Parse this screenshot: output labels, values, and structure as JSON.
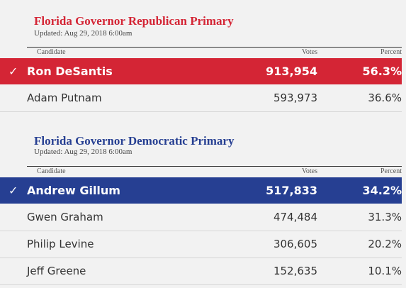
{
  "colors": {
    "republican": "#d42535",
    "democratic": "#263f92"
  },
  "races": [
    {
      "title": "Florida Governor Republican Primary",
      "updated": "Updated: Aug 29, 2018 6:00am",
      "headers": {
        "candidate": "Candidate",
        "votes": "Votes",
        "percent": "Percent"
      },
      "candidates": [
        {
          "name": "Ron DeSantis",
          "votes": "913,954",
          "percent": "56.3%",
          "winner": true,
          "check": "✓"
        },
        {
          "name": "Adam Putnam",
          "votes": "593,973",
          "percent": "36.6%",
          "winner": false
        }
      ]
    },
    {
      "title": "Florida Governor Democratic Primary",
      "updated": "Updated: Aug 29, 2018 6:00am",
      "headers": {
        "candidate": "Candidate",
        "votes": "Votes",
        "percent": "Percent"
      },
      "candidates": [
        {
          "name": "Andrew Gillum",
          "votes": "517,833",
          "percent": "34.2%",
          "winner": true,
          "check": "✓"
        },
        {
          "name": "Gwen Graham",
          "votes": "474,484",
          "percent": "31.3%",
          "winner": false
        },
        {
          "name": "Philip Levine",
          "votes": "306,605",
          "percent": "20.2%",
          "winner": false
        },
        {
          "name": "Jeff Greene",
          "votes": "152,635",
          "percent": "10.1%",
          "winner": false
        }
      ]
    }
  ]
}
